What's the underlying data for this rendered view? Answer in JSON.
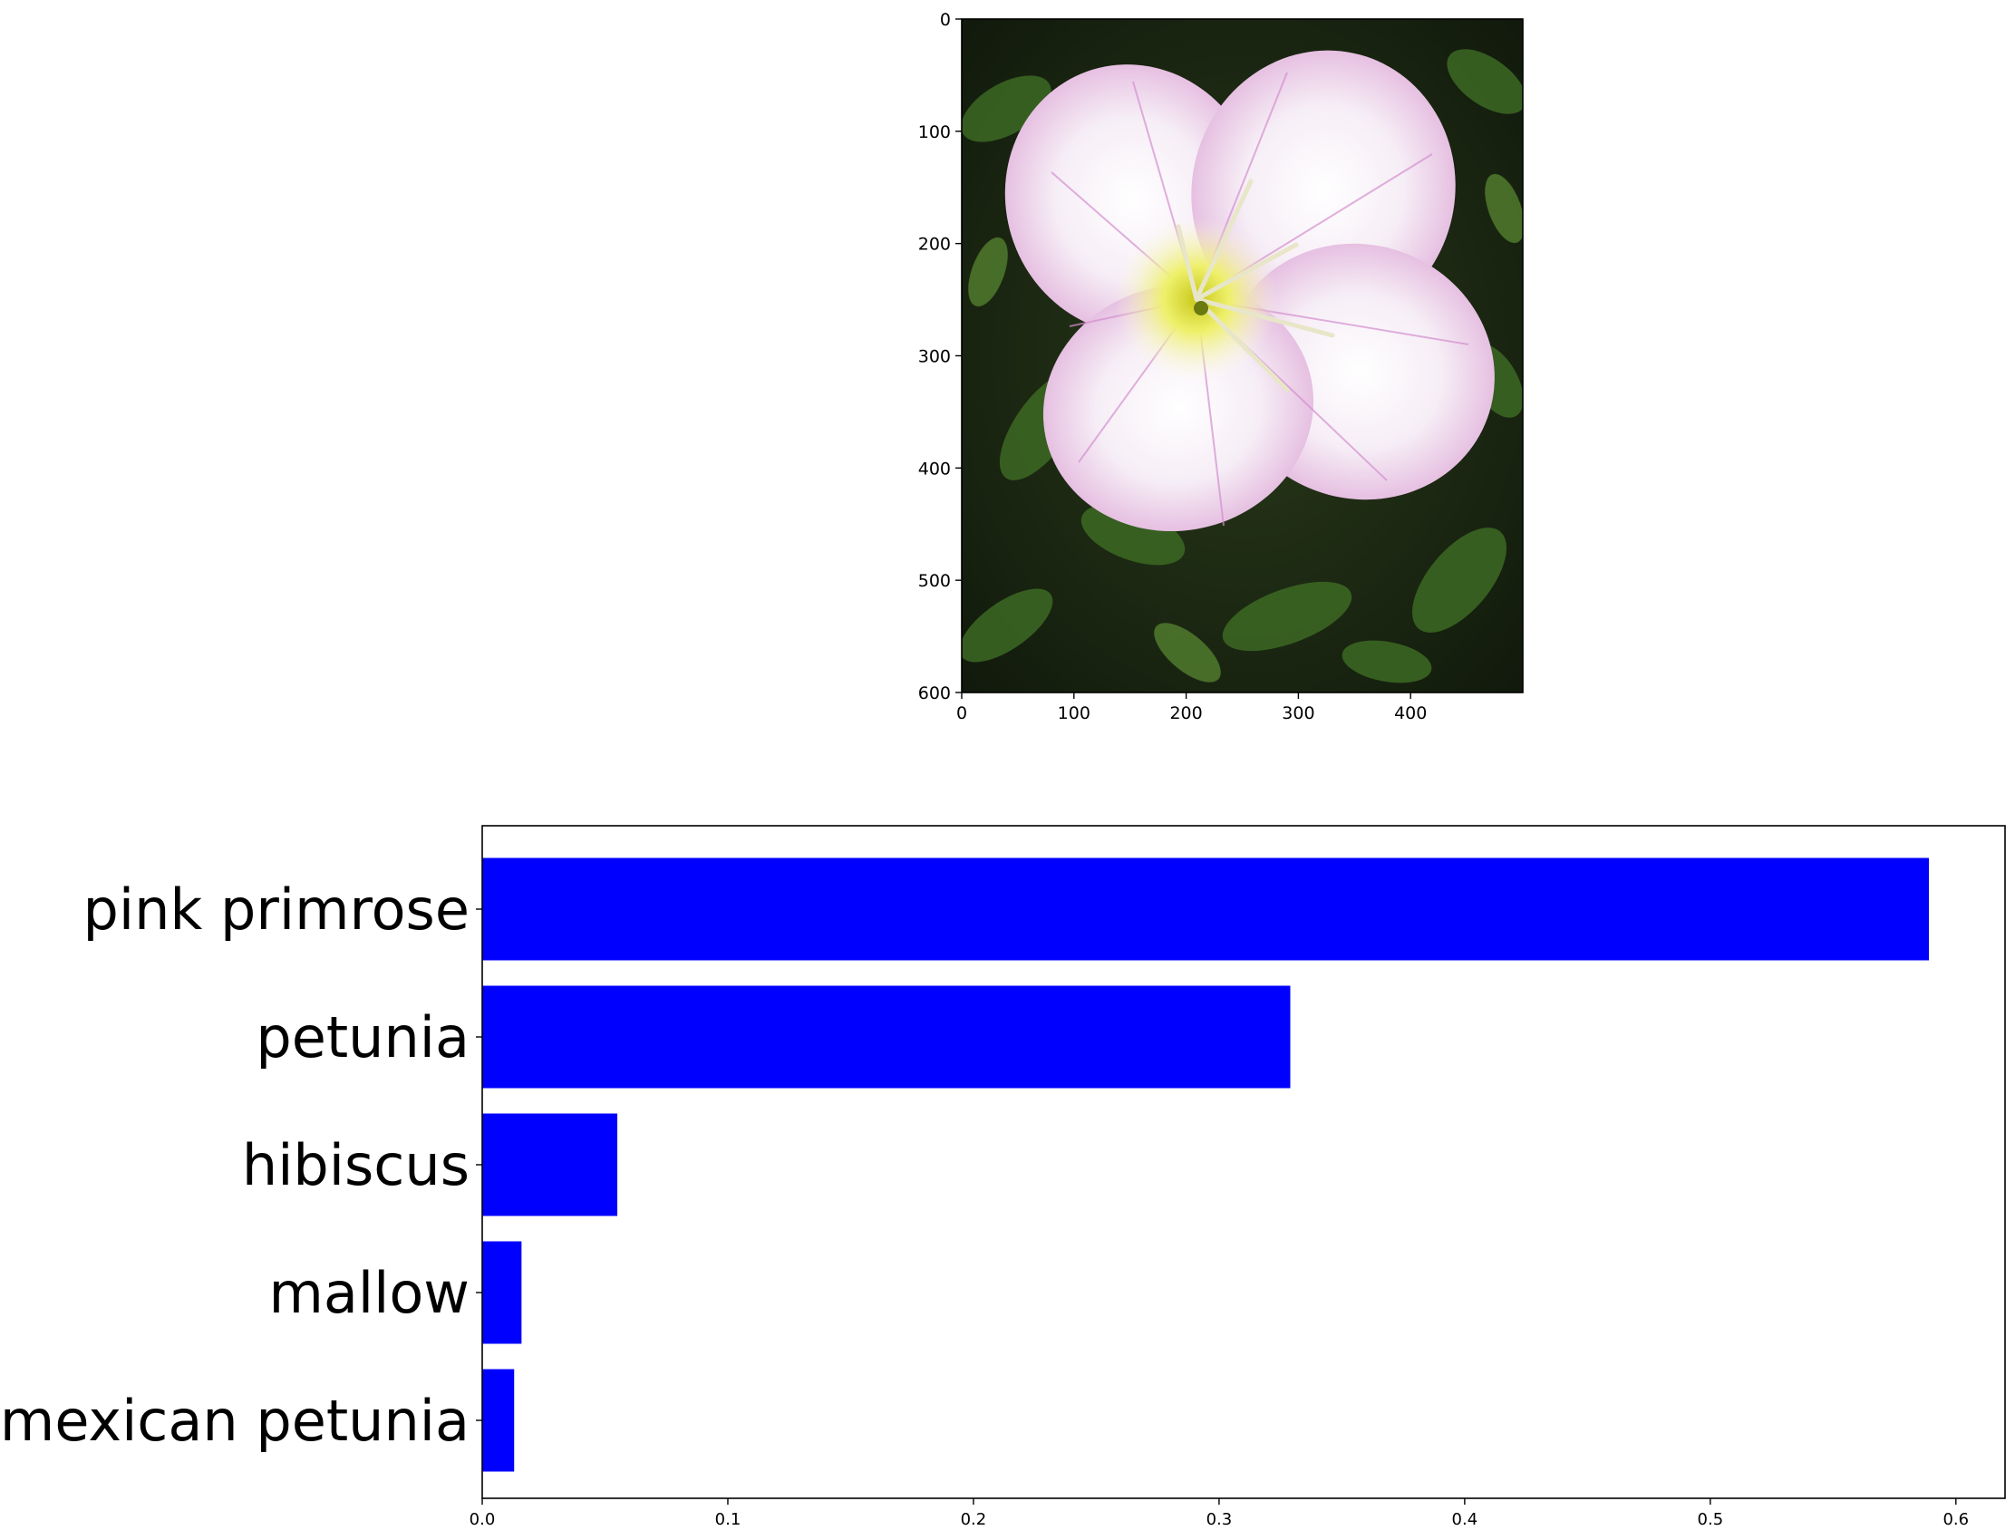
{
  "chart_data": [
    {
      "type": "image",
      "subject": "pink-primrose-flower",
      "xlim": [
        0,
        500
      ],
      "ylim": [
        600,
        0
      ],
      "x_ticks": [
        0,
        100,
        200,
        300,
        400
      ],
      "y_ticks": [
        0,
        100,
        200,
        300,
        400,
        500,
        600
      ]
    },
    {
      "type": "bar",
      "orientation": "horizontal",
      "categories": [
        "pink primrose",
        "petunia",
        "hibiscus",
        "mallow",
        "mexican petunia"
      ],
      "values": [
        0.589,
        0.329,
        0.055,
        0.016,
        0.013
      ],
      "xlim": [
        0,
        0.62
      ],
      "x_ticks": [
        0.0,
        0.1,
        0.2,
        0.3,
        0.4,
        0.5,
        0.6
      ],
      "bar_color": "#0000ff",
      "title": "",
      "xlabel": "",
      "ylabel": ""
    }
  ]
}
